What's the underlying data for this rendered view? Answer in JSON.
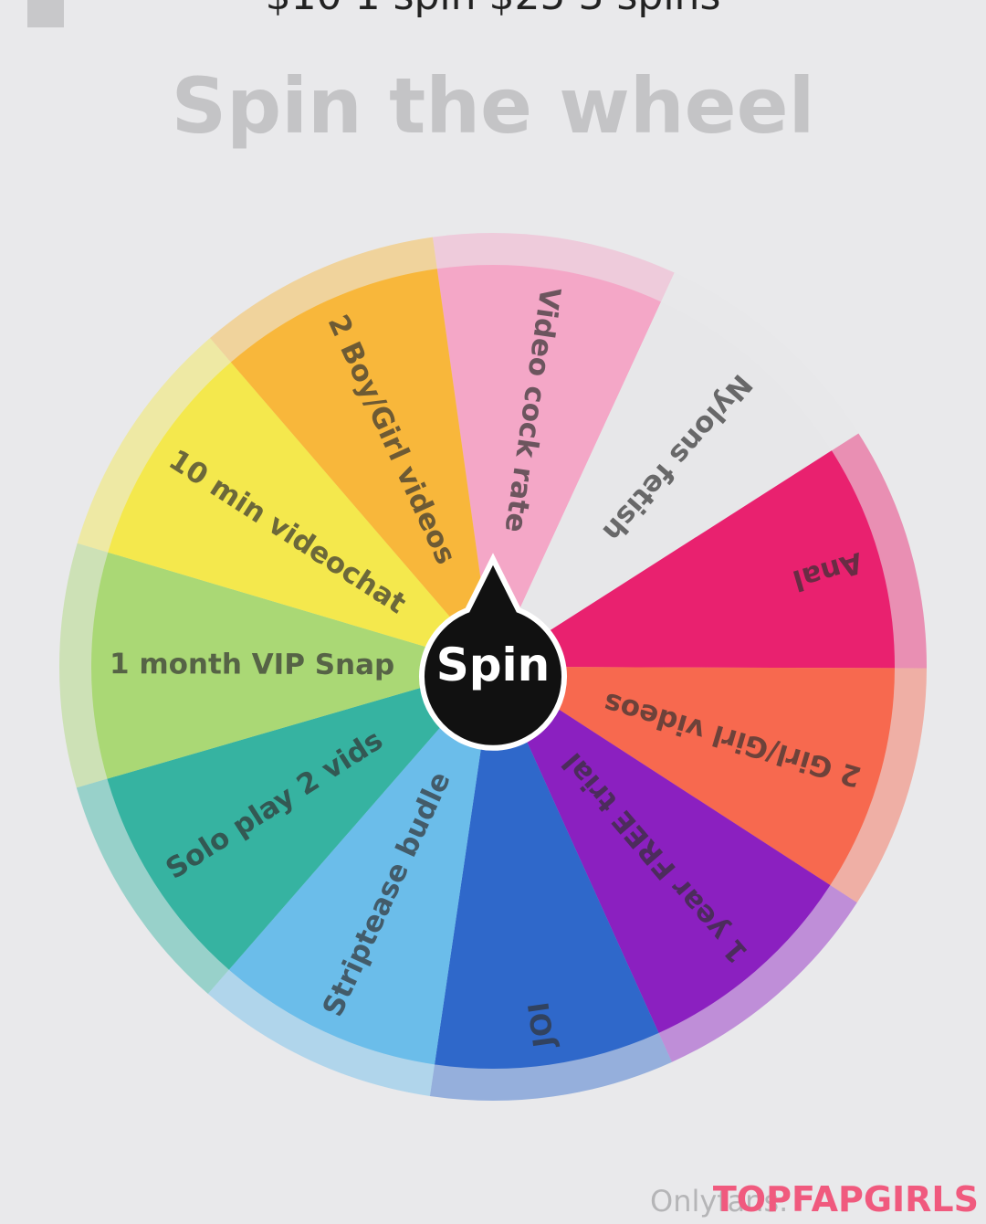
{
  "header": {
    "price_text": "$10 1 spin $25 3 spins",
    "title": "Spin the wheel"
  },
  "wheel": {
    "button": "Spin",
    "segments": [
      {
        "label": "Video cock rate",
        "color": "#f4a7c7"
      },
      {
        "label": "Nylons fetish",
        "color": "#e7e7e9"
      },
      {
        "label": "Anal",
        "color": "#e9216f"
      },
      {
        "label": "2 Girl/Girl videos",
        "color": "#f7694f"
      },
      {
        "label": "1 year FREE trial",
        "color": "#8b20c0"
      },
      {
        "label": "JOI",
        "color": "#2f68ca"
      },
      {
        "label": "Striptease budle",
        "color": "#6bbdea"
      },
      {
        "label": "Solo play 2 vids",
        "color": "#36b3a1"
      },
      {
        "label": "1 month VIP Snap",
        "color": "#aad875"
      },
      {
        "label": "10 min videochat",
        "color": "#f4e84d"
      },
      {
        "label": "2 Boy/Girl videos",
        "color": "#f8b73b"
      }
    ]
  },
  "footer": {
    "watermark": "Onlyfans.",
    "brand": "TOPFAPGIRLS"
  }
}
